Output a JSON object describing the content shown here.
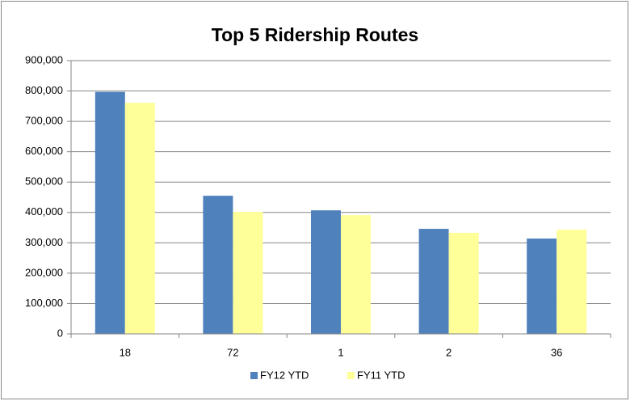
{
  "chart_data": {
    "type": "bar",
    "title": "Top 5 Ridership Routes",
    "categories": [
      "18",
      "72",
      "1",
      "2",
      "36"
    ],
    "series": [
      {
        "name": "FY12 YTD",
        "color": "#4f81bd",
        "values": [
          797000,
          455000,
          407000,
          346000,
          314000
        ]
      },
      {
        "name": "FY11 YTD",
        "color": "#ffff99",
        "values": [
          761000,
          402000,
          391000,
          333000,
          343000
        ]
      }
    ],
    "ylim": [
      0,
      900000
    ],
    "yticks": [
      0,
      {
        "value": 100000,
        "label": "100,000"
      },
      {
        "value": 200000,
        "label": "200,000"
      },
      {
        "value": 300000,
        "label": "300,000"
      },
      {
        "value": 400000,
        "label": "400,000"
      },
      {
        "value": 500000,
        "label": "500,000"
      },
      {
        "value": 600000,
        "label": "600,000"
      },
      {
        "value": 700000,
        "label": "700,000"
      },
      {
        "value": 800000,
        "label": "800,000"
      },
      {
        "value": 900000,
        "label": "900,000"
      }
    ],
    "grid": true,
    "legend": "bottom"
  }
}
